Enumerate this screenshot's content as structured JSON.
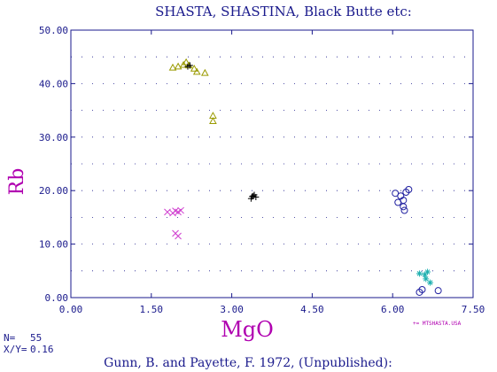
{
  "chart_data": {
    "type": "scatter",
    "title": "SHASTA, SHASTINA, Black Butte etc:",
    "xlabel": "MgO",
    "ylabel": "Rb",
    "xlim": [
      0,
      7.5
    ],
    "ylim": [
      0,
      50
    ],
    "x_ticks": [
      "0.00",
      "1.50",
      "3.00",
      "4.50",
      "6.00",
      "7.50"
    ],
    "y_ticks": [
      "0.00",
      "10.00",
      "20.00",
      "30.00",
      "40.00",
      "50.00"
    ],
    "grid": "dotted",
    "series": [
      {
        "marker": "triangle",
        "color": "#9a9a00",
        "points": [
          [
            1.9,
            43.0
          ],
          [
            2.0,
            43.2
          ],
          [
            2.1,
            43.5
          ],
          [
            2.15,
            44.0
          ],
          [
            2.2,
            43.4
          ],
          [
            2.3,
            42.8
          ],
          [
            2.35,
            42.2
          ],
          [
            2.5,
            42.0
          ],
          [
            2.65,
            34.0
          ],
          [
            2.65,
            33.0
          ]
        ]
      },
      {
        "marker": "plus",
        "color": "#000000",
        "points": [
          [
            2.18,
            43.2
          ],
          [
            2.22,
            43.4
          ],
          [
            3.36,
            18.5
          ],
          [
            3.4,
            19.0
          ],
          [
            3.45,
            18.8
          ],
          [
            3.42,
            19.2
          ],
          [
            3.38,
            18.9
          ]
        ]
      },
      {
        "marker": "x",
        "color": "#d040d0",
        "points": [
          [
            1.8,
            16.0
          ],
          [
            1.9,
            15.8
          ],
          [
            1.95,
            16.2
          ],
          [
            2.0,
            16.0
          ],
          [
            2.05,
            16.3
          ],
          [
            1.95,
            12.0
          ],
          [
            2.0,
            11.5
          ]
        ]
      },
      {
        "marker": "circle",
        "color": "#2020a0",
        "points": [
          [
            6.05,
            19.5
          ],
          [
            6.1,
            17.8
          ],
          [
            6.15,
            19.0
          ],
          [
            6.2,
            18.2
          ],
          [
            6.25,
            19.7
          ],
          [
            6.3,
            20.2
          ],
          [
            6.2,
            17.0
          ],
          [
            6.22,
            16.3
          ],
          [
            6.5,
            1.0
          ],
          [
            6.55,
            1.5
          ],
          [
            6.85,
            1.3
          ]
        ]
      },
      {
        "marker": "asterisk",
        "color": "#20b0b0",
        "points": [
          [
            6.5,
            4.5
          ],
          [
            6.6,
            4.3
          ],
          [
            6.65,
            4.8
          ],
          [
            6.62,
            3.5
          ],
          [
            6.7,
            2.8
          ]
        ]
      }
    ]
  },
  "info": {
    "n_label": "N=",
    "n_value": "55",
    "ratio_label": "X/Y=",
    "ratio_value": "0.16"
  },
  "legend_text": "+= MTSHASTA.USA",
  "credit": "Gunn, B.  and  Payette, F. 1972, (Unpublished):"
}
